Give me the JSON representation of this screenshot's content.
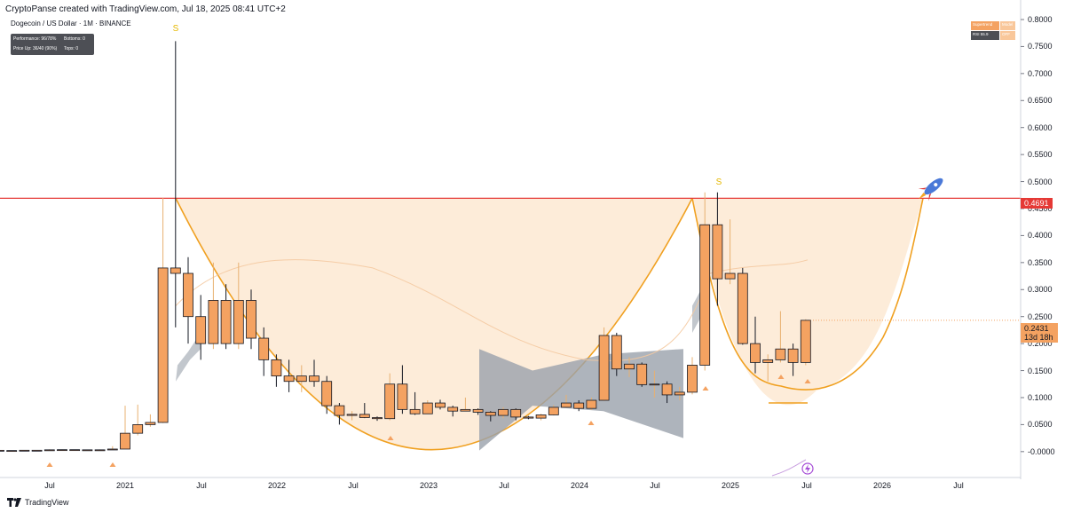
{
  "header": {
    "credit": "CryptoPanse created with TradingView.com, Jul 18, 2025 08:41 UTC+2",
    "symbol": "Dogecoin / US Dollar · 1M · BINANCE"
  },
  "stats_panel": {
    "cells": [
      "Performance: 96/78%",
      "Bottoms: 0",
      "Price Up: 36/40 (90%)",
      "Tops: 0"
    ]
  },
  "indicator_panel": {
    "supertrend_label": "Supertrend",
    "model_label": "Model",
    "rsi_label": "RSI 55.9",
    "off_label": "OFF"
  },
  "price_tags": {
    "resistance": "0.4691",
    "current_price": "0.2431",
    "countdown": "13d 18h"
  },
  "annotations": {
    "sell_marker": "S"
  },
  "footer": {
    "brand": "TradingView"
  },
  "colors": {
    "bull_candle": "#f4a261",
    "bear_candle": "#f4a261",
    "resistance_line": "#e53935",
    "cup_curve": "#f0a020",
    "cup_fill": "#fde9d2",
    "cloud": "#9aa1ab"
  },
  "chart_data": {
    "type": "candlestick",
    "title": "",
    "y_axis": {
      "range": [
        -0.02,
        0.8
      ],
      "ticks": [
        "0.8000",
        "0.7500",
        "0.7000",
        "0.6500",
        "0.6000",
        "0.5500",
        "0.5000",
        "0.4500",
        "0.4000",
        "0.3500",
        "0.3000",
        "0.2500",
        "0.2000",
        "0.1500",
        "0.1000",
        "0.0500",
        "-0.0000"
      ],
      "scale": "linear"
    },
    "x_axis": {
      "ticks": [
        "Jul",
        "2021",
        "Jul",
        "2022",
        "Jul",
        "2023",
        "Jul",
        "2024",
        "Jul",
        "2025",
        "Jul",
        "2026",
        "Jul"
      ]
    },
    "resistance_level": 0.4691,
    "current_price": 0.2431,
    "candles": [
      {
        "d": "2020-01",
        "o": 0.002,
        "h": 0.003,
        "l": 0.0019,
        "c": 0.0025
      },
      {
        "d": "2020-02",
        "o": 0.0025,
        "h": 0.0035,
        "l": 0.0022,
        "c": 0.0024
      },
      {
        "d": "2020-03",
        "o": 0.0024,
        "h": 0.0026,
        "l": 0.0011,
        "c": 0.0018
      },
      {
        "d": "2020-04",
        "o": 0.0018,
        "h": 0.0022,
        "l": 0.0017,
        "c": 0.002
      },
      {
        "d": "2020-05",
        "o": 0.002,
        "h": 0.0028,
        "l": 0.0019,
        "c": 0.0025
      },
      {
        "d": "2020-06",
        "o": 0.0025,
        "h": 0.0027,
        "l": 0.0023,
        "c": 0.0025
      },
      {
        "d": "2020-07",
        "o": 0.0025,
        "h": 0.0042,
        "l": 0.0024,
        "c": 0.0033
      },
      {
        "d": "2020-08",
        "o": 0.0033,
        "h": 0.004,
        "l": 0.003,
        "c": 0.0036
      },
      {
        "d": "2020-09",
        "o": 0.0036,
        "h": 0.0037,
        "l": 0.003,
        "c": 0.0033
      },
      {
        "d": "2020-10",
        "o": 0.0033,
        "h": 0.0034,
        "l": 0.0025,
        "c": 0.0026
      },
      {
        "d": "2020-11",
        "o": 0.0026,
        "h": 0.004,
        "l": 0.0024,
        "c": 0.0033
      },
      {
        "d": "2020-12",
        "o": 0.0033,
        "h": 0.01,
        "l": 0.003,
        "c": 0.0047
      },
      {
        "d": "2021-01",
        "o": 0.0047,
        "h": 0.085,
        "l": 0.0046,
        "c": 0.034
      },
      {
        "d": "2021-02",
        "o": 0.034,
        "h": 0.087,
        "l": 0.03,
        "c": 0.05
      },
      {
        "d": "2021-03",
        "o": 0.05,
        "h": 0.069,
        "l": 0.046,
        "c": 0.054
      },
      {
        "d": "2021-04",
        "o": 0.054,
        "h": 0.47,
        "l": 0.053,
        "c": 0.34
      },
      {
        "d": "2021-05",
        "o": 0.34,
        "h": 0.76,
        "l": 0.23,
        "c": 0.33
      },
      {
        "d": "2021-06",
        "o": 0.33,
        "h": 0.36,
        "l": 0.2,
        "c": 0.25
      },
      {
        "d": "2021-07",
        "o": 0.25,
        "h": 0.29,
        "l": 0.17,
        "c": 0.2
      },
      {
        "d": "2021-08",
        "o": 0.2,
        "h": 0.35,
        "l": 0.19,
        "c": 0.28
      },
      {
        "d": "2021-09",
        "o": 0.28,
        "h": 0.31,
        "l": 0.19,
        "c": 0.2
      },
      {
        "d": "2021-10",
        "o": 0.2,
        "h": 0.35,
        "l": 0.19,
        "c": 0.28
      },
      {
        "d": "2021-11",
        "o": 0.28,
        "h": 0.3,
        "l": 0.19,
        "c": 0.21
      },
      {
        "d": "2021-12",
        "o": 0.21,
        "h": 0.23,
        "l": 0.14,
        "c": 0.17
      },
      {
        "d": "2022-01",
        "o": 0.17,
        "h": 0.18,
        "l": 0.12,
        "c": 0.14
      },
      {
        "d": "2022-02",
        "o": 0.14,
        "h": 0.17,
        "l": 0.11,
        "c": 0.13
      },
      {
        "d": "2022-03",
        "o": 0.13,
        "h": 0.16,
        "l": 0.11,
        "c": 0.14
      },
      {
        "d": "2022-04",
        "o": 0.14,
        "h": 0.17,
        "l": 0.12,
        "c": 0.13
      },
      {
        "d": "2022-05",
        "o": 0.13,
        "h": 0.14,
        "l": 0.07,
        "c": 0.085
      },
      {
        "d": "2022-06",
        "o": 0.085,
        "h": 0.09,
        "l": 0.05,
        "c": 0.067
      },
      {
        "d": "2022-07",
        "o": 0.067,
        "h": 0.075,
        "l": 0.058,
        "c": 0.069
      },
      {
        "d": "2022-08",
        "o": 0.069,
        "h": 0.09,
        "l": 0.062,
        "c": 0.063
      },
      {
        "d": "2022-09",
        "o": 0.063,
        "h": 0.065,
        "l": 0.057,
        "c": 0.061
      },
      {
        "d": "2022-10",
        "o": 0.061,
        "h": 0.145,
        "l": 0.058,
        "c": 0.125
      },
      {
        "d": "2022-11",
        "o": 0.125,
        "h": 0.16,
        "l": 0.07,
        "c": 0.078
      },
      {
        "d": "2022-12",
        "o": 0.078,
        "h": 0.11,
        "l": 0.068,
        "c": 0.07
      },
      {
        "d": "2023-01",
        "o": 0.07,
        "h": 0.095,
        "l": 0.07,
        "c": 0.09
      },
      {
        "d": "2023-02",
        "o": 0.09,
        "h": 0.096,
        "l": 0.078,
        "c": 0.082
      },
      {
        "d": "2023-03",
        "o": 0.082,
        "h": 0.085,
        "l": 0.065,
        "c": 0.075
      },
      {
        "d": "2023-04",
        "o": 0.075,
        "h": 0.1,
        "l": 0.076,
        "c": 0.078
      },
      {
        "d": "2023-05",
        "o": 0.078,
        "h": 0.08,
        "l": 0.068,
        "c": 0.073
      },
      {
        "d": "2023-06",
        "o": 0.073,
        "h": 0.075,
        "l": 0.056,
        "c": 0.067
      },
      {
        "d": "2023-07",
        "o": 0.067,
        "h": 0.082,
        "l": 0.062,
        "c": 0.078
      },
      {
        "d": "2023-08",
        "o": 0.078,
        "h": 0.08,
        "l": 0.058,
        "c": 0.064
      },
      {
        "d": "2023-09",
        "o": 0.064,
        "h": 0.066,
        "l": 0.06,
        "c": 0.062
      },
      {
        "d": "2023-10",
        "o": 0.062,
        "h": 0.07,
        "l": 0.058,
        "c": 0.068
      },
      {
        "d": "2023-11",
        "o": 0.068,
        "h": 0.086,
        "l": 0.067,
        "c": 0.082
      },
      {
        "d": "2023-12",
        "o": 0.082,
        "h": 0.105,
        "l": 0.082,
        "c": 0.09
      },
      {
        "d": "2024-01",
        "o": 0.09,
        "h": 0.095,
        "l": 0.075,
        "c": 0.08
      },
      {
        "d": "2024-02",
        "o": 0.08,
        "h": 0.1,
        "l": 0.077,
        "c": 0.095
      },
      {
        "d": "2024-03",
        "o": 0.095,
        "h": 0.23,
        "l": 0.094,
        "c": 0.215
      },
      {
        "d": "2024-04",
        "o": 0.215,
        "h": 0.22,
        "l": 0.14,
        "c": 0.153
      },
      {
        "d": "2024-05",
        "o": 0.153,
        "h": 0.175,
        "l": 0.138,
        "c": 0.162
      },
      {
        "d": "2024-06",
        "o": 0.162,
        "h": 0.165,
        "l": 0.12,
        "c": 0.124
      },
      {
        "d": "2024-07",
        "o": 0.124,
        "h": 0.15,
        "l": 0.1,
        "c": 0.125
      },
      {
        "d": "2024-08",
        "o": 0.125,
        "h": 0.13,
        "l": 0.09,
        "c": 0.105
      },
      {
        "d": "2024-09",
        "o": 0.105,
        "h": 0.12,
        "l": 0.095,
        "c": 0.11
      },
      {
        "d": "2024-10",
        "o": 0.11,
        "h": 0.175,
        "l": 0.106,
        "c": 0.16
      },
      {
        "d": "2024-11",
        "o": 0.16,
        "h": 0.48,
        "l": 0.15,
        "c": 0.42
      },
      {
        "d": "2024-12",
        "o": 0.42,
        "h": 0.48,
        "l": 0.27,
        "c": 0.32
      },
      {
        "d": "2025-01",
        "o": 0.32,
        "h": 0.43,
        "l": 0.31,
        "c": 0.33
      },
      {
        "d": "2025-02",
        "o": 0.33,
        "h": 0.34,
        "l": 0.198,
        "c": 0.2
      },
      {
        "d": "2025-03",
        "o": 0.2,
        "h": 0.25,
        "l": 0.145,
        "c": 0.165
      },
      {
        "d": "2025-04",
        "o": 0.165,
        "h": 0.18,
        "l": 0.13,
        "c": 0.17
      },
      {
        "d": "2025-05",
        "o": 0.17,
        "h": 0.26,
        "l": 0.165,
        "c": 0.19
      },
      {
        "d": "2025-06",
        "o": 0.19,
        "h": 0.2,
        "l": 0.14,
        "c": 0.165
      },
      {
        "d": "2025-07",
        "o": 0.165,
        "h": 0.245,
        "l": 0.16,
        "c": 0.2431
      }
    ]
  }
}
